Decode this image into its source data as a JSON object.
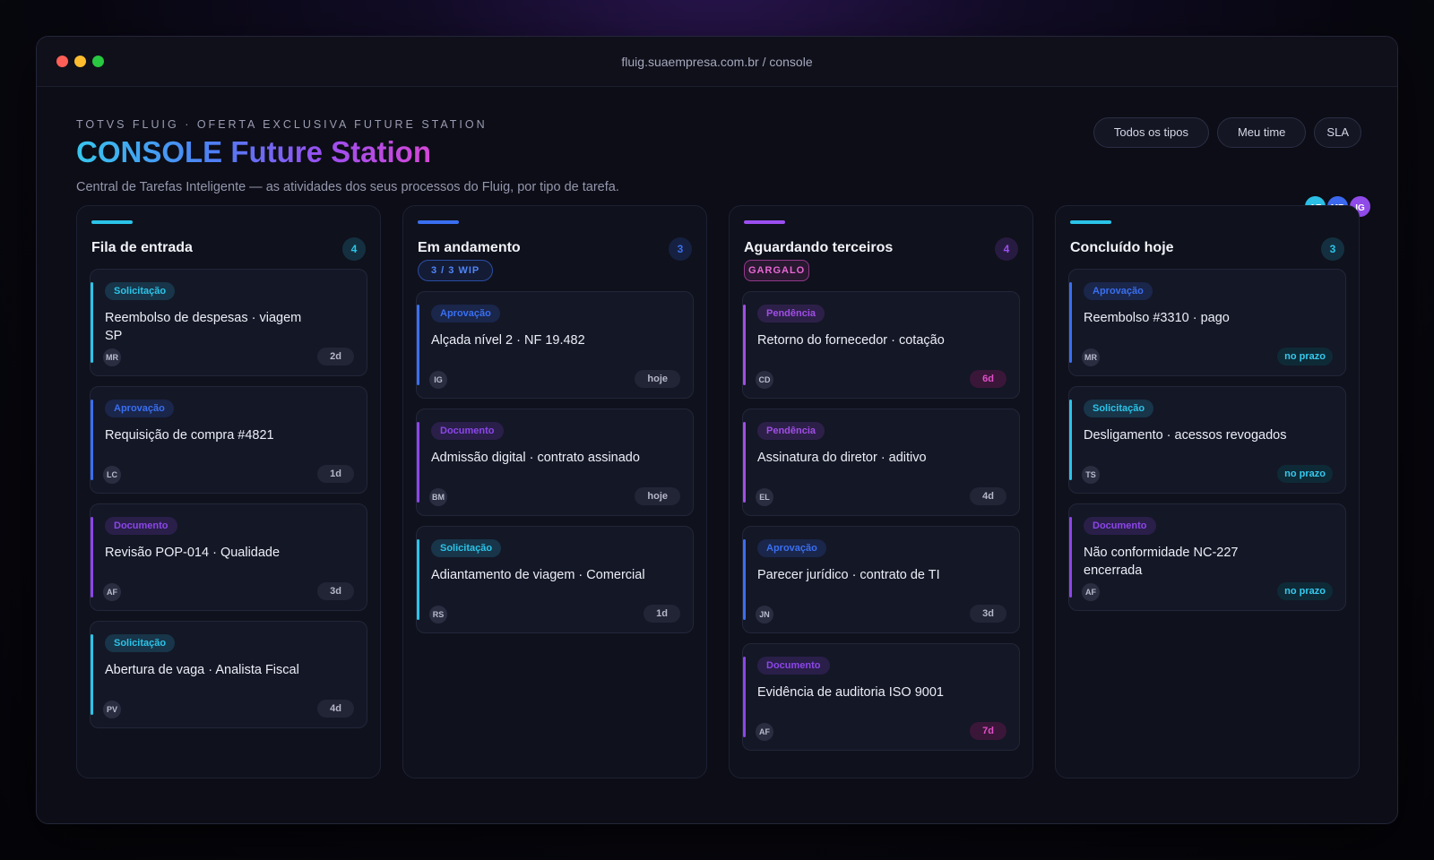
{
  "browser": {
    "url": "fluig.suaempresa.com.br / console"
  },
  "header": {
    "kicker": "TOTVS FLUIG · OFERTA EXCLUSIVA FUTURE STATION",
    "title": "CONSOLE Future Station",
    "subtitle": "Central de Tarefas Inteligente — as atividades dos seus processos do Fluig, por tipo de tarefa.",
    "filters": [
      "Todos os tipos",
      "Meu time",
      "SLA"
    ],
    "avatars": [
      {
        "initials": "AF",
        "color": "#2bbfe6"
      },
      {
        "initials": "MR",
        "color": "#3b68ee"
      },
      {
        "initials": "IG",
        "color": "#8f4ae8"
      }
    ]
  },
  "colors": {
    "solicitacao": "#2bc4e8",
    "aprovacao": "#3a6ff0",
    "documento": "#8c46e8",
    "pendencia": "#a04ee6"
  },
  "columns": [
    {
      "title": "Fila de entrada",
      "count": "4",
      "accent": "#2bc4e8",
      "cards": [
        {
          "tag": "Solicitação",
          "type": "solicitacao",
          "title": "Reembolso de despesas · viagem SP",
          "who": "MR",
          "age": "2d",
          "age_style": ""
        },
        {
          "tag": "Aprovação",
          "type": "aprovacao",
          "title": "Requisição de compra #4821",
          "who": "LC",
          "age": "1d",
          "age_style": ""
        },
        {
          "tag": "Documento",
          "type": "documento",
          "title": "Revisão POP-014 · Qualidade",
          "who": "AF",
          "age": "3d",
          "age_style": ""
        },
        {
          "tag": "Solicitação",
          "type": "solicitacao",
          "title": "Abertura de vaga · Analista Fiscal",
          "who": "PV",
          "age": "4d",
          "age_style": ""
        }
      ]
    },
    {
      "title": "Em andamento",
      "count": "3",
      "accent": "#3a6ff0",
      "badge": "3 / 3 WIP",
      "cards": [
        {
          "tag": "Aprovação",
          "type": "aprovacao",
          "title": "Alçada nível 2 · NF 19.482",
          "who": "IG",
          "age": "hoje",
          "age_style": ""
        },
        {
          "tag": "Documento",
          "type": "documento",
          "title": "Admissão digital · contrato assinado",
          "who": "BM",
          "age": "hoje",
          "age_style": ""
        },
        {
          "tag": "Solicitação",
          "type": "solicitacao",
          "title": "Adiantamento de viagem · Comercial",
          "who": "RS",
          "age": "1d",
          "age_style": ""
        }
      ]
    },
    {
      "title": "Aguardando terceiros",
      "count": "4",
      "accent": "#9b4ff0",
      "badge": "GARGALO",
      "cards": [
        {
          "tag": "Pendência",
          "type": "pendencia",
          "title": "Retorno do fornecedor · cotação",
          "who": "CD",
          "age": "6d",
          "age_style": "late"
        },
        {
          "tag": "Pendência",
          "type": "pendencia",
          "title": "Assinatura do diretor · aditivo",
          "who": "EL",
          "age": "4d",
          "age_style": ""
        },
        {
          "tag": "Aprovação",
          "type": "aprovacao",
          "title": "Parecer jurídico · contrato de TI",
          "who": "JN",
          "age": "3d",
          "age_style": ""
        },
        {
          "tag": "Documento",
          "type": "documento",
          "title": "Evidência de auditoria ISO 9001",
          "who": "AF",
          "age": "7d",
          "age_style": "late"
        }
      ]
    },
    {
      "title": "Concluído hoje",
      "count": "3",
      "accent": "#2bc4e8",
      "cards": [
        {
          "tag": "Aprovação",
          "type": "aprovacao",
          "title": "Reembolso #3310 · pago",
          "who": "MR",
          "age": "no prazo",
          "age_style": "ok"
        },
        {
          "tag": "Solicitação",
          "type": "solicitacao",
          "title": "Desligamento · acessos revogados",
          "who": "TS",
          "age": "no prazo",
          "age_style": "ok"
        },
        {
          "tag": "Documento",
          "type": "documento",
          "title": "Não conformidade NC-227 encerrada",
          "who": "AF",
          "age": "no prazo",
          "age_style": "ok"
        }
      ]
    }
  ]
}
